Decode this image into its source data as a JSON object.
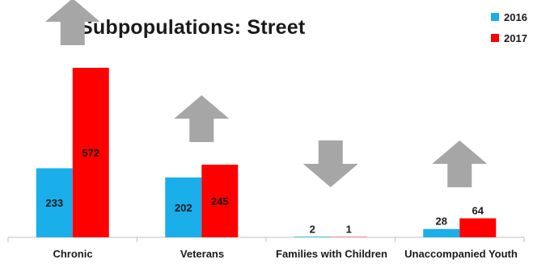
{
  "chart_data": {
    "type": "bar",
    "title": "Subpopulations: Street",
    "categories": [
      "Chronic",
      "Veterans",
      "Families with Children",
      "Unaccompanied Youth"
    ],
    "series": [
      {
        "name": "2016",
        "values": [
          233,
          202,
          2,
          28
        ],
        "color": "#1aaeea"
      },
      {
        "name": "2017",
        "values": [
          572,
          245,
          1,
          64
        ],
        "color": "#ff0000"
      }
    ],
    "data_labels": true,
    "trend_arrows": [
      "up",
      "up",
      "down",
      "up"
    ],
    "arrow_color": "#a6a6a6",
    "legend_position": "top-right",
    "grid": false,
    "ylim": [
      0,
      650
    ]
  }
}
